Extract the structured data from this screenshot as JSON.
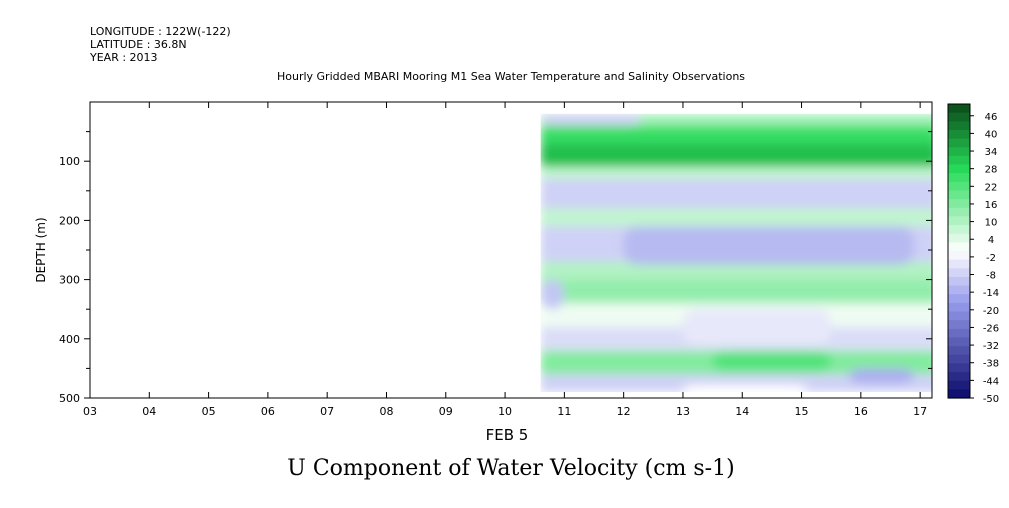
{
  "header": {
    "longitude": "LONGITUDE : 122W(-122)",
    "latitude": "LATITUDE : 36.8N",
    "year": "YEAR : 2013",
    "plot_title": "Hourly Gridded MBARI Mooring M1 Sea Water Temperature and Salinity Observations"
  },
  "chart_data": {
    "type": "heatmap",
    "title": "U Component of Water Velocity (cm s-1)",
    "xlabel": "FEB  5",
    "ylabel": "DEPTH (m)",
    "x_ticks": [
      "03",
      "04",
      "05",
      "06",
      "07",
      "08",
      "09",
      "10",
      "11",
      "12",
      "13",
      "14",
      "15",
      "16",
      "17"
    ],
    "y_ticks": [
      "100",
      "200",
      "300",
      "400",
      "500"
    ],
    "xlim": [
      3.0,
      17.2
    ],
    "ylim": [
      500,
      0
    ],
    "data_extent": {
      "x_start": 10.6,
      "x_end": 17.2,
      "depth_top": 20,
      "depth_bottom": 490
    },
    "colorbar": {
      "ticks": [
        "46",
        "40",
        "34",
        "28",
        "22",
        "16",
        "10",
        "4",
        "-2",
        "-8",
        "-14",
        "-20",
        "-26",
        "-32",
        "-38",
        "-44",
        "-50"
      ],
      "min": -50,
      "max": 50,
      "low_color": "#0a0a6a",
      "mid_color": "#ffffff",
      "high_color": "#0a4a1a"
    },
    "depth_bands": [
      {
        "depth_top": 20,
        "depth_bottom": 40,
        "value": 12
      },
      {
        "depth_top": 40,
        "depth_bottom": 70,
        "value": 26
      },
      {
        "depth_top": 70,
        "depth_bottom": 110,
        "value": 32
      },
      {
        "depth_top": 110,
        "depth_bottom": 130,
        "value": 8
      },
      {
        "depth_top": 130,
        "depth_bottom": 180,
        "value": -8
      },
      {
        "depth_top": 180,
        "depth_bottom": 210,
        "value": 8
      },
      {
        "depth_top": 210,
        "depth_bottom": 270,
        "value": -8
      },
      {
        "depth_top": 270,
        "depth_bottom": 300,
        "value": 10
      },
      {
        "depth_top": 300,
        "depth_bottom": 340,
        "value": 14
      },
      {
        "depth_top": 340,
        "depth_bottom": 380,
        "value": 2
      },
      {
        "depth_top": 380,
        "depth_bottom": 420,
        "value": -6
      },
      {
        "depth_top": 420,
        "depth_bottom": 460,
        "value": 16
      },
      {
        "depth_top": 460,
        "depth_bottom": 490,
        "value": -8
      }
    ],
    "features": [
      {
        "x_start": 10.6,
        "x_end": 12.3,
        "depth_top": 20,
        "depth_bottom": 40,
        "value": -8
      },
      {
        "x_start": 12.0,
        "x_end": 16.9,
        "depth_top": 210,
        "depth_bottom": 275,
        "value": -12
      },
      {
        "x_start": 10.6,
        "x_end": 11.0,
        "depth_top": 300,
        "depth_bottom": 350,
        "value": -10
      },
      {
        "x_start": 13.0,
        "x_end": 15.5,
        "depth_top": 350,
        "depth_bottom": 410,
        "value": -4
      },
      {
        "x_start": 13.5,
        "x_end": 15.5,
        "depth_top": 420,
        "depth_bottom": 455,
        "value": 22
      },
      {
        "x_start": 15.8,
        "x_end": 16.9,
        "depth_top": 450,
        "depth_bottom": 475,
        "value": -14
      },
      {
        "x_start": 13.0,
        "x_end": 15.1,
        "depth_top": 478,
        "depth_bottom": 490,
        "value": 0
      }
    ]
  }
}
